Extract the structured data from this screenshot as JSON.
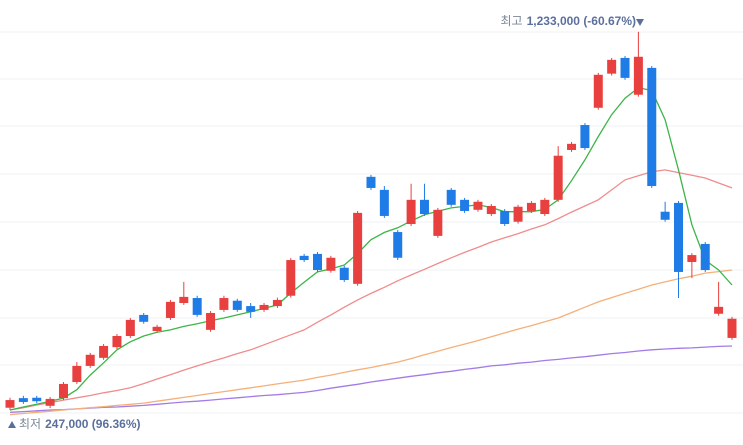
{
  "chart_data": {
    "type": "candlestick",
    "ylim": [
      221000,
      1316000
    ],
    "up_color": "#e8403f",
    "down_color": "#1f7be6",
    "candles": {
      "open": [
        253000,
        278000,
        279000,
        258000,
        278000,
        320000,
        362000,
        383000,
        411000,
        440000,
        495000,
        453000,
        487000,
        526000,
        539000,
        456000,
        508000,
        532000,
        518000,
        508000,
        518000,
        545000,
        649000,
        654000,
        610000,
        618000,
        576000,
        855000,
        821000,
        711000,
        732000,
        795000,
        701000,
        821000,
        795000,
        769000,
        758000,
        766000,
        738000,
        766000,
        758000,
        795000,
        925000,
        990000,
        1035000,
        1124000,
        1165000,
        1069000,
        1139000,
        764000,
        787000,
        633000,
        680000,
        498000,
        435000
      ],
      "high": [
        279000,
        284000,
        284000,
        281000,
        320000,
        372000,
        396000,
        419000,
        445000,
        487000,
        500000,
        469000,
        534000,
        581000,
        545000,
        505000,
        545000,
        537000,
        526000,
        526000,
        540000,
        643000,
        654000,
        659000,
        649000,
        623000,
        766000,
        860000,
        831000,
        716000,
        837000,
        837000,
        774000,
        826000,
        800000,
        795000,
        784000,
        771000,
        782000,
        792000,
        800000,
        935000,
        946000,
        995000,
        1126000,
        1165000,
        1170000,
        1233000,
        1144000,
        790000,
        792000,
        656000,
        685000,
        581000,
        490000
      ],
      "low": [
        247000,
        263000,
        265000,
        252000,
        273000,
        315000,
        357000,
        378000,
        406000,
        435000,
        472000,
        448000,
        482000,
        521000,
        490000,
        451000,
        503000,
        503000,
        487000,
        503000,
        513000,
        540000,
        633000,
        607000,
        605000,
        581000,
        571000,
        821000,
        748000,
        638000,
        727000,
        753000,
        696000,
        777000,
        761000,
        764000,
        753000,
        727000,
        733000,
        761000,
        753000,
        790000,
        920000,
        925000,
        1030000,
        1119000,
        1108000,
        1064000,
        826000,
        738000,
        539000,
        591000,
        607000,
        493000,
        430000
      ],
      "close": [
        273000,
        268000,
        270000,
        276000,
        315000,
        362000,
        391000,
        414000,
        440000,
        482000,
        477000,
        464000,
        529000,
        542000,
        495000,
        500000,
        539000,
        508000,
        503000,
        521000,
        534000,
        638000,
        638000,
        612000,
        644000,
        586000,
        761000,
        826000,
        753000,
        644000,
        795000,
        758000,
        769000,
        782000,
        766000,
        790000,
        779000,
        732000,
        777000,
        787000,
        795000,
        910000,
        941000,
        930000,
        1121000,
        1160000,
        1113000,
        1168000,
        831000,
        743000,
        607000,
        651000,
        612000,
        516000,
        485000
      ]
    },
    "moving_averages": [
      {
        "color": "#a37be6",
        "values": [
          241000,
          243000,
          245000,
          247000,
          248000,
          250000,
          252000,
          254000,
          255000,
          257000,
          259000,
          262000,
          265000,
          268000,
          270000,
          273000,
          276000,
          279000,
          282000,
          285000,
          287000,
          290000,
          293000,
          298000,
          304000,
          309000,
          314000,
          320000,
          325000,
          330000,
          335000,
          339000,
          344000,
          348000,
          353000,
          357000,
          362000,
          365000,
          369000,
          372000,
          376000,
          379000,
          383000,
          386000,
          390000,
          394000,
          397000,
          401000,
          404000,
          406000,
          408000,
          409000,
          411000,
          413000,
          414000
        ]
      },
      {
        "color": "#f5b07a",
        "values": [
          235000,
          238000,
          241000,
          244000,
          247000,
          250000,
          253000,
          256000,
          259000,
          262000,
          265000,
          270000,
          275000,
          280000,
          285000,
          290000,
          295000,
          300000,
          305000,
          310000,
          315000,
          320000,
          325000,
          332000,
          338000,
          345000,
          352000,
          358000,
          365000,
          372000,
          381000,
          391000,
          400000,
          410000,
          419000,
          428000,
          438000,
          448000,
          458000,
          467000,
          477000,
          487000,
          501000,
          515000,
          529000,
          540000,
          551000,
          562000,
          573000,
          581000,
          589000,
          596000,
          604000,
          608000,
          612000
        ]
      },
      {
        "color": "#f08c8c",
        "values": [
          247000,
          253000,
          260000,
          266000,
          273000,
          279000,
          285000,
          292000,
          298000,
          305000,
          316000,
          328000,
          339000,
          351000,
          362000,
          373000,
          383000,
          394000,
          404000,
          417000,
          430000,
          443000,
          456000,
          476000,
          495000,
          515000,
          534000,
          551000,
          567000,
          584000,
          599000,
          614000,
          629000,
          644000,
          658000,
          671000,
          685000,
          696000,
          707000,
          719000,
          730000,
          746000,
          763000,
          779000,
          795000,
          821000,
          847000,
          858000,
          868000,
          873000,
          866000,
          859000,
          852000,
          839000,
          826000
        ]
      },
      {
        "color": "#3db548",
        "values": [
          247000,
          255000,
          262000,
          270000,
          278000,
          300000,
          338000,
          370000,
          404000,
          425000,
          440000,
          450000,
          456000,
          465000,
          472000,
          480000,
          487000,
          495000,
          503000,
          512000,
          521000,
          552000,
          580000,
          607000,
          615000,
          625000,
          655000,
          691000,
          710000,
          722000,
          740000,
          756000,
          765000,
          774000,
          778000,
          782000,
          775000,
          764000,
          764000,
          764000,
          770000,
          795000,
          845000,
          899000,
          960000,
          1017000,
          1060000,
          1087000,
          1080000,
          1004000,
          873000,
          730000,
          638000,
          612000,
          573000
        ]
      }
    ],
    "annotations": [
      {
        "label": "최고",
        "text": "1,233,000 (-60.67%)"
      },
      {
        "label": "최저",
        "text": "247,000 (96.36%)"
      }
    ]
  }
}
